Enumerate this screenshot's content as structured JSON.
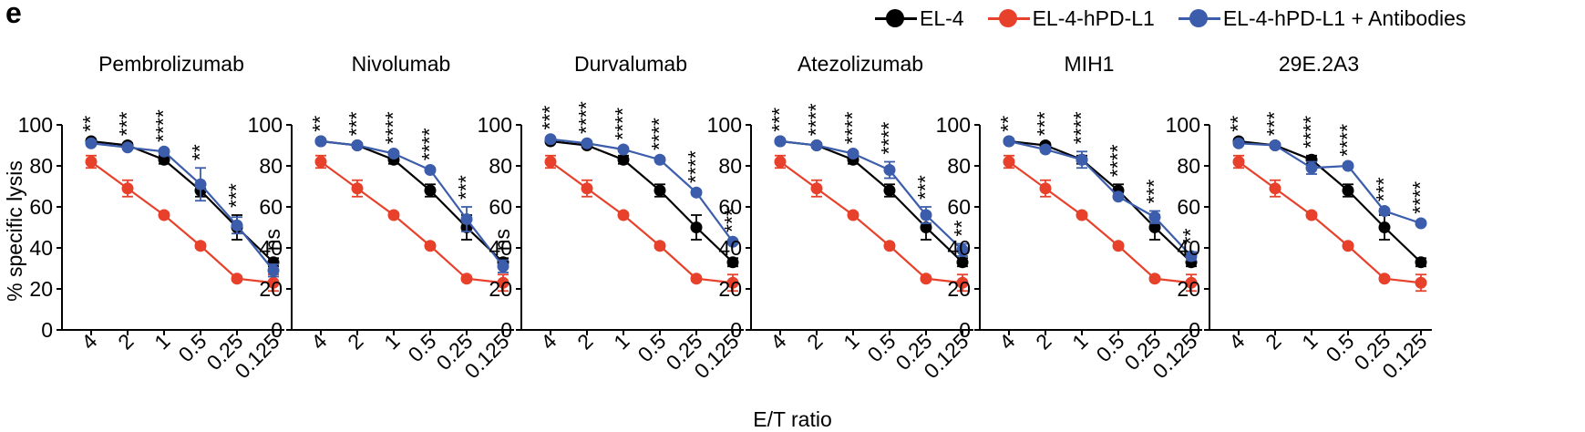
{
  "figure": {
    "panel_label": "e",
    "legend": [
      {
        "label": "EL-4",
        "color": "#000000"
      },
      {
        "label": "EL-4-hPD-L1",
        "color": "#e8412b"
      },
      {
        "label": "EL-4-hPD-L1 + Antibodies",
        "color": "#3b5dab"
      }
    ],
    "xlabel": "E/T ratio",
    "ylabel": "% specific lysis"
  },
  "chart_data": [
    {
      "type": "line",
      "title": "Pembrolizumab",
      "categories": [
        "4",
        "2",
        "1",
        "0.5",
        "0.25",
        "0.125"
      ],
      "ylim": [
        0,
        100
      ],
      "yticks": [
        "0",
        "20",
        "40",
        "60",
        "80",
        "100"
      ],
      "series": [
        {
          "name": "EL-4",
          "color": "#000000",
          "values": [
            92,
            90,
            83,
            68,
            50,
            33
          ],
          "errors": [
            1,
            1,
            2,
            3,
            6,
            2
          ]
        },
        {
          "name": "EL-4-hPD-L1",
          "color": "#e8412b",
          "values": [
            82,
            69,
            56,
            41,
            25,
            23
          ],
          "errors": [
            3,
            4,
            1,
            1,
            1,
            4
          ]
        },
        {
          "name": "EL-4-hPD-L1 + Antibodies",
          "color": "#3b5dab",
          "values": [
            91,
            89,
            87,
            71,
            51,
            29
          ],
          "errors": [
            1,
            1,
            1,
            8,
            4,
            3
          ]
        }
      ],
      "annotations": [
        "**",
        "***",
        "****",
        "**",
        "***",
        "ns"
      ]
    },
    {
      "type": "line",
      "title": "Nivolumab",
      "categories": [
        "4",
        "2",
        "1",
        "0.5",
        "0.25",
        "0.125"
      ],
      "ylim": [
        0,
        100
      ],
      "yticks": [
        "0",
        "20",
        "40",
        "60",
        "80",
        "100"
      ],
      "series": [
        {
          "name": "EL-4",
          "color": "#000000",
          "values": [
            92,
            90,
            83,
            68,
            50,
            33
          ],
          "errors": [
            1,
            1,
            2,
            3,
            6,
            2
          ]
        },
        {
          "name": "EL-4-hPD-L1",
          "color": "#e8412b",
          "values": [
            82,
            69,
            56,
            41,
            25,
            23
          ],
          "errors": [
            3,
            4,
            1,
            1,
            1,
            4
          ]
        },
        {
          "name": "EL-4-hPD-L1 + Antibodies",
          "color": "#3b5dab",
          "values": [
            92,
            90,
            86,
            78,
            54,
            31
          ],
          "errors": [
            1,
            1,
            1,
            1,
            6,
            3
          ]
        }
      ],
      "annotations": [
        "**",
        "***",
        "****",
        "****",
        "***",
        "ns"
      ]
    },
    {
      "type": "line",
      "title": "Durvalumab",
      "categories": [
        "4",
        "2",
        "1",
        "0.5",
        "0.25",
        "0.125"
      ],
      "ylim": [
        0,
        100
      ],
      "yticks": [
        "0",
        "20",
        "40",
        "60",
        "80",
        "100"
      ],
      "series": [
        {
          "name": "EL-4",
          "color": "#000000",
          "values": [
            92,
            90,
            83,
            68,
            50,
            33
          ],
          "errors": [
            1,
            1,
            2,
            3,
            6,
            2
          ]
        },
        {
          "name": "EL-4-hPD-L1",
          "color": "#e8412b",
          "values": [
            82,
            69,
            56,
            41,
            25,
            23
          ],
          "errors": [
            3,
            4,
            1,
            1,
            1,
            4
          ]
        },
        {
          "name": "EL-4-hPD-L1 + Antibodies",
          "color": "#3b5dab",
          "values": [
            93,
            91,
            88,
            83,
            67,
            43
          ],
          "errors": [
            1,
            1,
            1,
            1,
            1,
            1
          ]
        }
      ],
      "annotations": [
        "***",
        "****",
        "****",
        "****",
        "****",
        "***"
      ]
    },
    {
      "type": "line",
      "title": "Atezolizumab",
      "categories": [
        "4",
        "2",
        "1",
        "0.5",
        "0.25",
        "0.125"
      ],
      "ylim": [
        0,
        100
      ],
      "yticks": [
        "0",
        "20",
        "40",
        "60",
        "80",
        "100"
      ],
      "series": [
        {
          "name": "EL-4",
          "color": "#000000",
          "values": [
            92,
            90,
            83,
            68,
            50,
            33
          ],
          "errors": [
            1,
            1,
            2,
            3,
            6,
            2
          ]
        },
        {
          "name": "EL-4-hPD-L1",
          "color": "#e8412b",
          "values": [
            82,
            69,
            56,
            41,
            25,
            23
          ],
          "errors": [
            3,
            4,
            1,
            1,
            1,
            4
          ]
        },
        {
          "name": "EL-4-hPD-L1 + Antibodies",
          "color": "#3b5dab",
          "values": [
            92,
            90,
            86,
            78,
            56,
            39
          ],
          "errors": [
            1,
            1,
            1,
            4,
            4,
            3
          ]
        }
      ],
      "annotations": [
        "***",
        "****",
        "****",
        "****",
        "***",
        "**"
      ]
    },
    {
      "type": "line",
      "title": "MIH1",
      "categories": [
        "4",
        "2",
        "1",
        "0.5",
        "0.25",
        "0.125"
      ],
      "ylim": [
        0,
        100
      ],
      "yticks": [
        "0",
        "20",
        "40",
        "60",
        "80",
        "100"
      ],
      "series": [
        {
          "name": "EL-4",
          "color": "#000000",
          "values": [
            92,
            90,
            83,
            68,
            50,
            33
          ],
          "errors": [
            1,
            1,
            2,
            3,
            6,
            2
          ]
        },
        {
          "name": "EL-4-hPD-L1",
          "color": "#e8412b",
          "values": [
            82,
            69,
            56,
            41,
            25,
            23
          ],
          "errors": [
            3,
            4,
            1,
            1,
            1,
            4
          ]
        },
        {
          "name": "EL-4-hPD-L1 + Antibodies",
          "color": "#3b5dab",
          "values": [
            92,
            88,
            83,
            65,
            55,
            36
          ],
          "errors": [
            1,
            1,
            4,
            1,
            3,
            2
          ]
        }
      ],
      "annotations": [
        "**",
        "***",
        "****",
        "****",
        "***",
        "**"
      ]
    },
    {
      "type": "line",
      "title": "29E.2A3",
      "categories": [
        "4",
        "2",
        "1",
        "0.5",
        "0.25",
        "0.125"
      ],
      "ylim": [
        0,
        100
      ],
      "yticks": [
        "0",
        "20",
        "40",
        "60",
        "80",
        "100"
      ],
      "series": [
        {
          "name": "EL-4",
          "color": "#000000",
          "values": [
            92,
            90,
            83,
            68,
            50,
            33
          ],
          "errors": [
            1,
            1,
            2,
            3,
            6,
            2
          ]
        },
        {
          "name": "EL-4-hPD-L1",
          "color": "#e8412b",
          "values": [
            82,
            69,
            56,
            41,
            25,
            23
          ],
          "errors": [
            3,
            4,
            1,
            1,
            1,
            4
          ]
        },
        {
          "name": "EL-4-hPD-L1 + Antibodies",
          "color": "#3b5dab",
          "values": [
            91,
            90,
            79,
            80,
            58,
            52
          ],
          "errors": [
            1,
            1,
            3,
            1,
            1,
            1
          ]
        }
      ],
      "annotations": [
        "**",
        "***",
        "****",
        "****",
        "***",
        "****"
      ]
    }
  ]
}
